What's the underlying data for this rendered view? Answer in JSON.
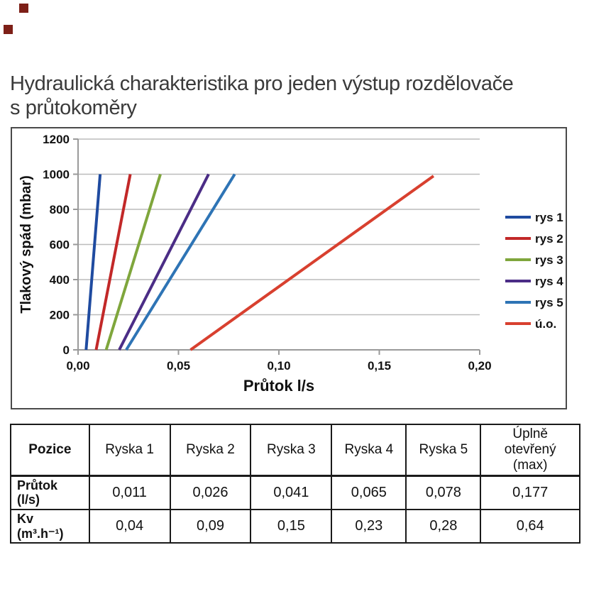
{
  "page": {
    "title_line1": "Hydraulická charakteristika pro jeden výstup rozdělovače",
    "title_line2": "s průtokoměry"
  },
  "chart_data": {
    "type": "line",
    "title": "",
    "xlabel": "Průtok l/s",
    "ylabel": "Tlakový spád (mbar)",
    "xlim": [
      0,
      0.2
    ],
    "ylim": [
      0,
      1200
    ],
    "x_ticks": [
      "0,00",
      "0,05",
      "0,10",
      "0,15",
      "0,20"
    ],
    "x_tick_values": [
      0,
      0.05,
      0.1,
      0.15,
      0.2
    ],
    "y_ticks": [
      "0",
      "200",
      "400",
      "600",
      "800",
      "1000",
      "1200"
    ],
    "y_tick_values": [
      0,
      200,
      400,
      600,
      800,
      1000,
      1200
    ],
    "grid": "horizontal",
    "legend_position": "right",
    "series": [
      {
        "name": "rys 1",
        "color": "#1f4ba0",
        "points": [
          [
            0.004,
            0
          ],
          [
            0.011,
            1000
          ]
        ]
      },
      {
        "name": "rys 2",
        "color": "#c22828",
        "points": [
          [
            0.009,
            0
          ],
          [
            0.026,
            1000
          ]
        ]
      },
      {
        "name": "rys 3",
        "color": "#7fa63c",
        "points": [
          [
            0.014,
            0
          ],
          [
            0.041,
            1000
          ]
        ]
      },
      {
        "name": "rys 4",
        "color": "#4b2d86",
        "points": [
          [
            0.0205,
            0
          ],
          [
            0.065,
            1000
          ]
        ]
      },
      {
        "name": "rys 5",
        "color": "#2e74b5",
        "points": [
          [
            0.024,
            0
          ],
          [
            0.078,
            1000
          ]
        ]
      },
      {
        "name": "ú.o.",
        "color": "#d8402f",
        "points": [
          [
            0.056,
            0
          ],
          [
            0.177,
            990
          ]
        ]
      }
    ]
  },
  "table": {
    "columns": [
      "Pozice",
      "Ryska 1",
      "Ryska 2",
      "Ryska 3",
      "Ryska 4",
      "Ryska 5",
      "Úplně otevřený (max)"
    ],
    "rows": [
      {
        "label": "Průtok (l/s)",
        "values": [
          "0,011",
          "0,026",
          "0,041",
          "0,065",
          "0,078",
          "0,177"
        ]
      },
      {
        "label": "Kv (m³.h⁻¹)",
        "values": [
          "0,04",
          "0,09",
          "0,15",
          "0,23",
          "0,28",
          "0,64"
        ]
      }
    ]
  }
}
